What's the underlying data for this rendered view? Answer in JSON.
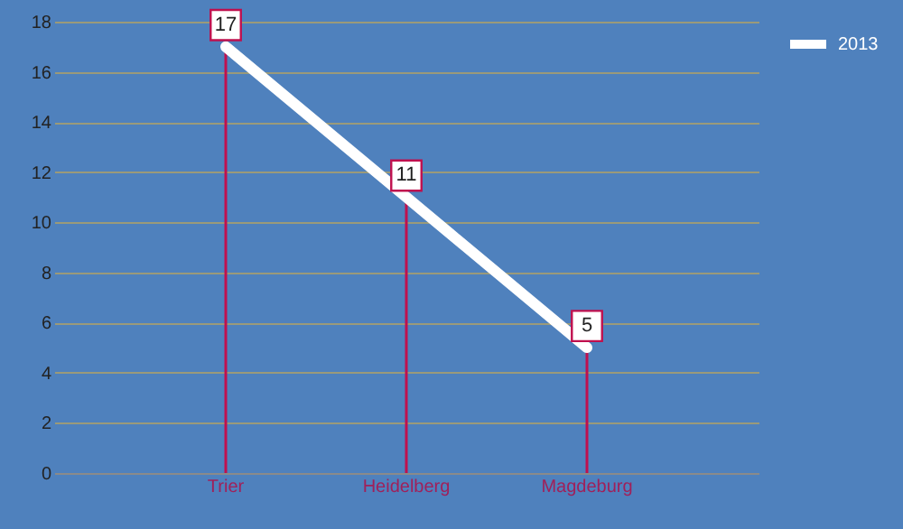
{
  "chart_data": {
    "type": "line",
    "categories": [
      "Trier",
      "Heidelberg",
      "Magdeburg"
    ],
    "series": [
      {
        "type": "bar",
        "color": "#c0104e",
        "values": [
          17,
          11,
          5
        ]
      },
      {
        "name": "2013",
        "color": "#ffffff",
        "values": [
          17,
          11,
          5
        ],
        "value_labels": [
          "17",
          "11",
          "5"
        ]
      }
    ],
    "ylim": [
      0,
      18
    ],
    "yticks": [
      0,
      2,
      4,
      6,
      8,
      10,
      12,
      14,
      16,
      18
    ],
    "grid": "y",
    "legend": "right",
    "marker": "none",
    "line_style": "solid"
  }
}
